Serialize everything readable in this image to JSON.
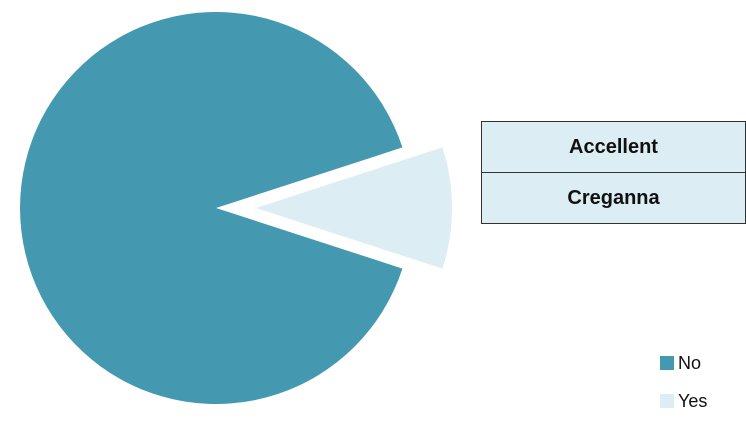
{
  "chart_data": {
    "type": "pie",
    "categories": [
      "No",
      "Yes"
    ],
    "values": [
      90,
      10
    ],
    "colors": [
      "#4499b0",
      "#dcedf3"
    ],
    "exploded": "Yes",
    "legend_position": "bottom-right",
    "title": "",
    "annotation_rows": [
      "Accellent",
      "Creganna"
    ]
  }
}
